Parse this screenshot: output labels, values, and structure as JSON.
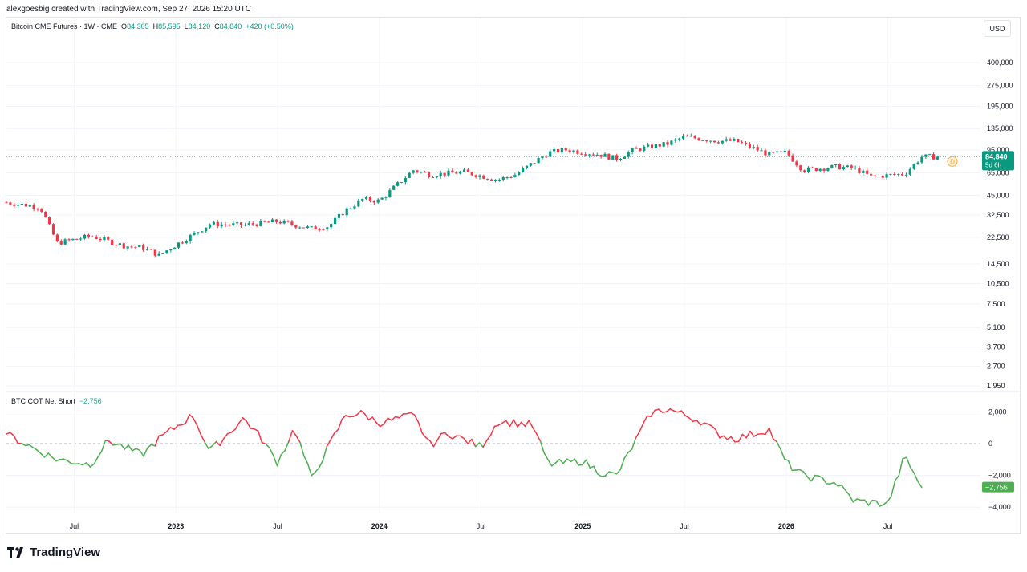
{
  "header": {
    "attribution": "alexgoesbig created with TradingView.com, Sep 27, 2026 15:20 UTC"
  },
  "legend": {
    "symbol": "Bitcoin CME Futures · 1W · CME",
    "open_label": "O",
    "open": "84,305",
    "high_label": "H",
    "high": "85,595",
    "low_label": "L",
    "low": "84,120",
    "close_label": "C",
    "close": "84,840",
    "change": "+420 (+0.50%)"
  },
  "indicator_legend": {
    "name": "BTC COT Net Short",
    "value": "−2,756"
  },
  "currency_button": "USD",
  "price_badge": {
    "price": "84,840",
    "countdown": "5d 6h"
  },
  "indicator_badge": "−2,756",
  "marker_label": "D",
  "brand": "TradingView",
  "colors": {
    "up": "#089981",
    "down": "#f23645",
    "cot_positive": "#f23645",
    "cot_negative": "#4caf50",
    "marker": "#ff9800"
  },
  "chart_data": [
    {
      "type": "candlestick",
      "title": "Bitcoin CME Futures · 1W · CME",
      "y_scale": "log",
      "y_ticks": [
        "400,000",
        "275,000",
        "195,000",
        "135,000",
        "95,000",
        "65,000",
        "45,000",
        "32,500",
        "22,500",
        "14,500",
        "10,500",
        "7,500",
        "5,100",
        "3,700",
        "2,700",
        "1,950"
      ],
      "x_ticks": [
        "Jul",
        "2023",
        "Jul",
        "2024",
        "Jul",
        "2025",
        "Jul",
        "2026",
        "Jul"
      ],
      "x": [
        "2022-03",
        "2022-05",
        "2022-06",
        "2022-08",
        "2022-10",
        "2022-11",
        "2022-12",
        "2023-02",
        "2023-03",
        "2023-05",
        "2023-07",
        "2023-09",
        "2023-10",
        "2023-11",
        "2023-12",
        "2024-01",
        "2024-03",
        "2024-04",
        "2024-06",
        "2024-08",
        "2024-09",
        "2024-11",
        "2024-12",
        "2025-02",
        "2025-03",
        "2025-04",
        "2025-06",
        "2025-07",
        "2025-09",
        "2025-10",
        "2025-12",
        "2026-01",
        "2026-02",
        "2026-04",
        "2026-05",
        "2026-06",
        "2026-08",
        "2026-09"
      ],
      "close": [
        40000,
        37000,
        20500,
        23000,
        19500,
        19000,
        16800,
        23500,
        28000,
        27500,
        29300,
        26000,
        27000,
        35000,
        42000,
        41000,
        68000,
        63000,
        66000,
        58000,
        63000,
        91000,
        95000,
        88000,
        82000,
        95000,
        105000,
        118000,
        110000,
        110000,
        88000,
        91000,
        68000,
        72000,
        70000,
        61000,
        64000,
        84840
      ],
      "volume_ticks_unit": "USD"
    },
    {
      "type": "line",
      "title": "BTC COT Net Short",
      "y_ticks": [
        "2,000",
        "0",
        "−2,000",
        "−4,000"
      ],
      "x": [
        "2022-03",
        "2022-05",
        "2022-06",
        "2022-08",
        "2022-09",
        "2022-11",
        "2022-12",
        "2023-02",
        "2023-03",
        "2023-05",
        "2023-06",
        "2023-07",
        "2023-08",
        "2023-09",
        "2023-11",
        "2023-12",
        "2024-01",
        "2024-03",
        "2024-04",
        "2024-05",
        "2024-07",
        "2024-08",
        "2024-10",
        "2024-11",
        "2025-01",
        "2025-02",
        "2025-03",
        "2025-05",
        "2025-06",
        "2025-08",
        "2025-09",
        "2025-10",
        "2025-12",
        "2026-01",
        "2026-02",
        "2026-04",
        "2026-05",
        "2026-07",
        "2026-08",
        "2026-09"
      ],
      "values": [
        600,
        -500,
        -1000,
        -1300,
        200,
        -700,
        300,
        1800,
        -500,
        1600,
        400,
        -1200,
        1000,
        -2200,
        1800,
        1900,
        1300,
        1800,
        -100,
        700,
        -200,
        1400,
        1200,
        -1300,
        -1100,
        -1800,
        -2000,
        1900,
        2200,
        1400,
        600,
        300,
        900,
        -1200,
        -2000,
        -2500,
        -3600,
        -3800,
        -800,
        -2756
      ],
      "latest": -2756
    }
  ]
}
